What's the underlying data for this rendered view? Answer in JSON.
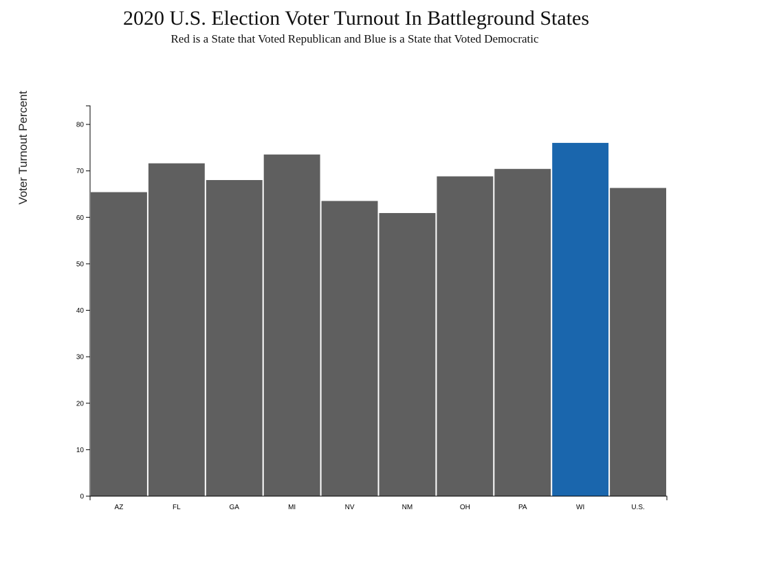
{
  "chart_data": {
    "type": "bar",
    "title": "2020 U.S. Election Voter Turnout In Battleground States",
    "subtitle": "Red is a State that Voted Republican and Blue is a State that Voted Democratic",
    "xlabel": "",
    "ylabel": "Voter Turnout Percent",
    "categories": [
      "AZ",
      "FL",
      "GA",
      "MI",
      "NV",
      "NM",
      "OH",
      "PA",
      "WI",
      "U.S."
    ],
    "values": [
      65.5,
      71.7,
      68.1,
      73.6,
      63.6,
      61.0,
      68.9,
      70.5,
      76.1,
      66.4
    ],
    "colors": [
      "#5f5f5f",
      "#5f5f5f",
      "#5f5f5f",
      "#5f5f5f",
      "#5f5f5f",
      "#5f5f5f",
      "#5f5f5f",
      "#5f5f5f",
      "#1a66ad",
      "#5f5f5f"
    ],
    "ylim": [
      0,
      84
    ],
    "yticks": [
      0,
      10,
      20,
      30,
      40,
      50,
      60,
      70,
      80
    ],
    "grid": false,
    "legend": "none"
  }
}
